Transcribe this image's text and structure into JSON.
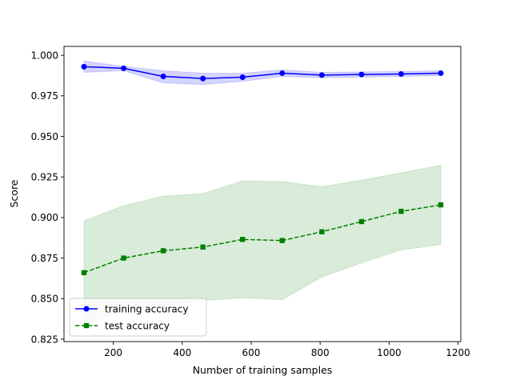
{
  "chart_data": {
    "type": "line",
    "xlabel": "Number of training samples",
    "ylabel": "Score",
    "xlim": [
      57,
      1208
    ],
    "ylim": [
      0.8235,
      1.0055
    ],
    "xticks": [
      200,
      400,
      600,
      800,
      1000,
      1200
    ],
    "yticks": [
      0.825,
      0.85,
      0.875,
      0.9,
      0.925,
      0.95,
      0.975,
      1.0
    ],
    "grid": false,
    "legend_position": "lower-left",
    "series": [
      {
        "name": "training accuracy",
        "color": "#0000ff",
        "marker": "circle",
        "linestyle": "solid",
        "x": [
          115,
          230,
          345,
          460,
          575,
          690,
          805,
          920,
          1035,
          1150
        ],
        "y": [
          0.993,
          0.992,
          0.987,
          0.9857,
          0.9865,
          0.989,
          0.9878,
          0.9882,
          0.9885,
          0.989
        ],
        "band_upper": [
          0.9965,
          0.9932,
          0.9905,
          0.989,
          0.989,
          0.991,
          0.9895,
          0.9898,
          0.99,
          0.9905
        ],
        "band_lower": [
          0.9895,
          0.9905,
          0.983,
          0.982,
          0.984,
          0.987,
          0.9862,
          0.9866,
          0.987,
          0.9875
        ]
      },
      {
        "name": "test accuracy",
        "color": "#008000",
        "marker": "square",
        "linestyle": "dashed",
        "x": [
          115,
          230,
          345,
          460,
          575,
          690,
          805,
          920,
          1035,
          1150
        ],
        "y": [
          0.866,
          0.875,
          0.8795,
          0.8818,
          0.8865,
          0.8858,
          0.8912,
          0.8975,
          0.9038,
          0.9078
        ],
        "band_upper": [
          0.898,
          0.9072,
          0.9132,
          0.9147,
          0.9225,
          0.9222,
          0.919,
          0.923,
          0.9275,
          0.9322
        ],
        "band_lower": [
          0.834,
          0.8428,
          0.8458,
          0.8489,
          0.8505,
          0.8494,
          0.8634,
          0.872,
          0.8801,
          0.8834
        ]
      }
    ]
  }
}
